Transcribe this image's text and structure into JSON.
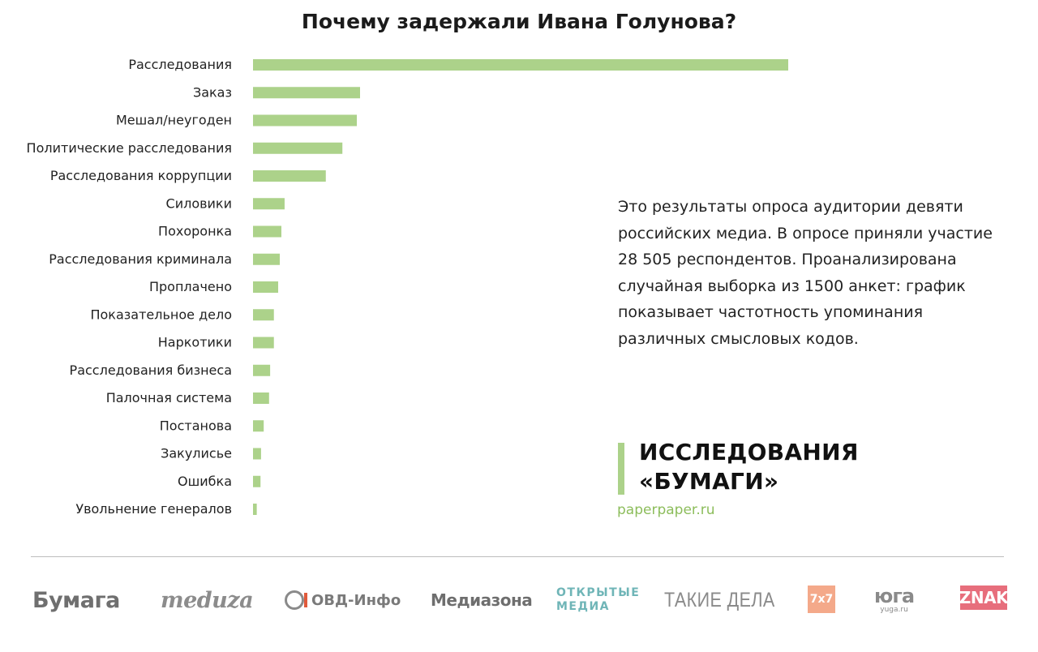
{
  "chart_data": {
    "type": "bar",
    "orientation": "horizontal",
    "title": "Почему задержали Ивана Голунова?",
    "categories": [
      "Расследования",
      "Заказ",
      "Мешал/неугоден",
      "Политические расследования",
      "Расследования коррупции",
      "Силовики",
      "Похоронка",
      "Расследования криминала",
      "Проплачено",
      "Показательное дело",
      "Наркотики",
      "Расследования бизнеса",
      "Палочная система",
      "Постанова",
      "Закулисье",
      "Ошибка",
      "Увольнение генералов"
    ],
    "values": [
      100,
      20,
      19.4,
      16.7,
      13.6,
      5.9,
      5.3,
      5.0,
      4.7,
      3.9,
      3.9,
      3.2,
      3.0,
      2.0,
      1.5,
      1.4,
      0.7
    ],
    "bar_color": "#acd28a",
    "grid": false,
    "legend": "none"
  },
  "description": "Это результаты опроса аудитории девяти российских медиа. В опросе приняли участие 28 505 респондентов. Проанализирована случайная выборка из 1500 анкет: график показывает частотность упоминания различных смысловых кодов.",
  "brand": {
    "line1": "ИССЛЕДОВАНИЯ",
    "line2": "«БУМАГИ»",
    "url": "paperpaper.ru",
    "accent_color": "#acd28a",
    "url_color": "#8cbd5b"
  },
  "partners": {
    "bumaga": "Бумага",
    "meduza": "meduza",
    "ovd": "ОВД-Инфо",
    "mediazona": "Медиазона",
    "otkrytye_line1": "ОТКРЫТЫЕ",
    "otkrytye_line2": "МЕДИА",
    "takie_dela": "ТАКИЕ ДЕЛА",
    "sevenxseven": "7x7",
    "yuga": "юга",
    "yuga_sub": "yuga.ru",
    "znak": "ZNAK"
  }
}
